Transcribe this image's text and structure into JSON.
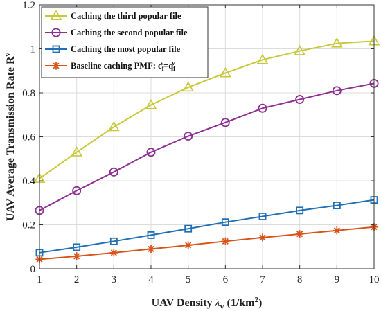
{
  "chart_data": {
    "type": "line",
    "x": [
      1,
      2,
      3,
      4,
      5,
      6,
      7,
      8,
      9,
      10
    ],
    "xlim": [
      1,
      10
    ],
    "ylim": [
      0,
      1.2
    ],
    "xticks": [
      "1",
      "2",
      "3",
      "4",
      "5",
      "6",
      "7",
      "8",
      "9",
      "10"
    ],
    "yticks": [
      "0",
      "0.2",
      "0.4",
      "0.6",
      "0.8",
      "1",
      "1.2"
    ],
    "ytick_values": [
      0,
      0.2,
      0.4,
      0.6,
      0.8,
      1.0,
      1.2
    ],
    "grid": true,
    "legend_position": "top-left",
    "xlabel": {
      "prefix": "UAV Density ",
      "symbol": "λ",
      "symbol_sub": "v",
      "unit_open": " (1/km",
      "unit_sup": "2",
      "unit_close": ")"
    },
    "ylabel": {
      "main": "UAV Average Transmission Rate R",
      "sup": "v"
    },
    "series": [
      {
        "name": "Caching the third popular file",
        "marker": "triangle",
        "color": "#c8c83a",
        "values": [
          0.41,
          0.53,
          0.645,
          0.745,
          0.825,
          0.89,
          0.95,
          0.99,
          1.025,
          1.035
        ]
      },
      {
        "name": "Caching the second popular file",
        "marker": "circle",
        "color": "#8e2f92",
        "values": [
          0.265,
          0.355,
          0.44,
          0.53,
          0.603,
          0.665,
          0.73,
          0.77,
          0.81,
          0.843
        ]
      },
      {
        "name": "Caching the most popular file",
        "marker": "square",
        "color": "#1f6fb5",
        "values": [
          0.073,
          0.098,
          0.125,
          0.153,
          0.182,
          0.212,
          0.238,
          0.265,
          0.288,
          0.313
        ]
      },
      {
        "name": "Baseline caching PMF: c",
        "name_parts": {
          "main": "Baseline caching PMF: c",
          "sub1": "f",
          "sup1": "v",
          "eq": "=q",
          "sub2": "f",
          "sup2": "v"
        },
        "marker": "asterisk",
        "color": "#d95319",
        "values": [
          0.043,
          0.057,
          0.073,
          0.09,
          0.107,
          0.125,
          0.142,
          0.158,
          0.174,
          0.19
        ]
      }
    ]
  }
}
